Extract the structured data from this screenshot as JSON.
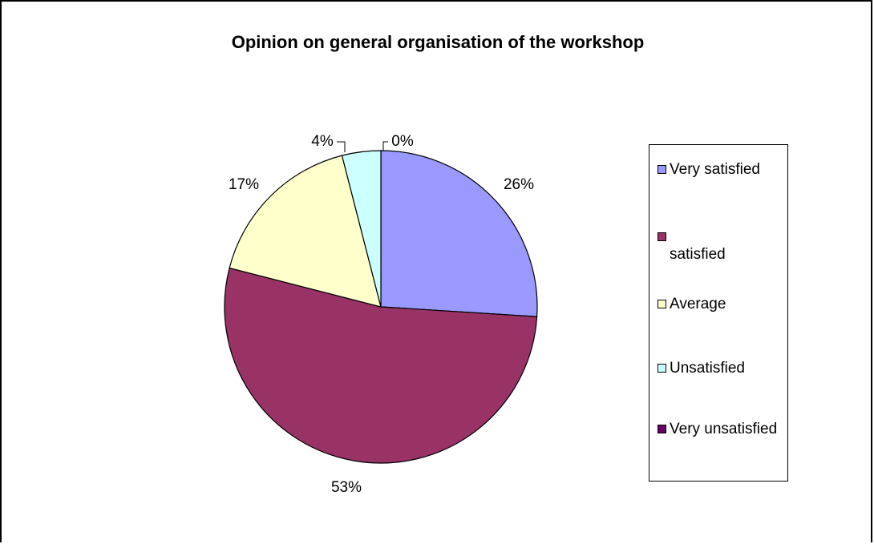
{
  "chart_data": {
    "type": "pie",
    "title": "Opinion on general organisation of the workshop",
    "categories": [
      "Very satisfied",
      "satisfied",
      "Average",
      "Unsatisfied",
      "Very unsatisfied"
    ],
    "values": [
      26,
      53,
      17,
      4,
      0
    ],
    "labels": [
      "26%",
      "53%",
      "17%",
      "4%",
      "0%"
    ],
    "colors": [
      "#9999FF",
      "#993366",
      "#FFFFCC",
      "#CCFFFF",
      "#660066"
    ],
    "legend": "right"
  }
}
